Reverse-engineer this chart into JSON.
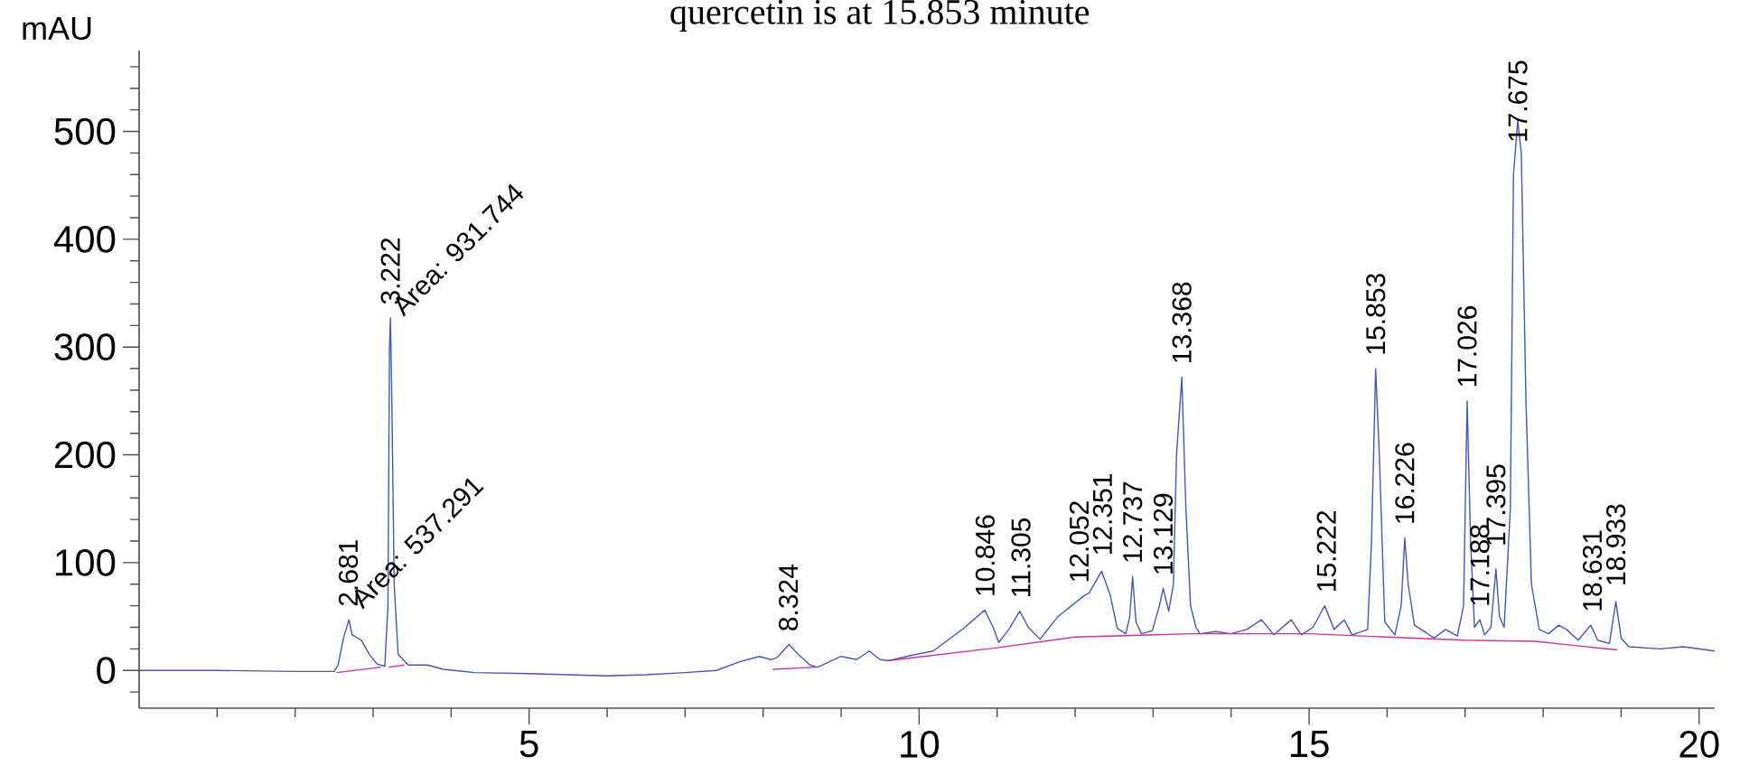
{
  "chart_data": {
    "type": "line",
    "title": "quercetin is at 15.853 minute",
    "ylabel": "mAU",
    "xlim": [
      0,
      20.2
    ],
    "ylim": [
      -35,
      575
    ],
    "xticks": [
      {
        "value": 1,
        "label": null
      },
      {
        "value": 2,
        "label": null
      },
      {
        "value": 3,
        "label": null
      },
      {
        "value": 4,
        "label": null
      },
      5,
      {
        "value": 6,
        "label": null
      },
      {
        "value": 7,
        "label": null
      },
      {
        "value": 8,
        "label": null
      },
      {
        "value": 9,
        "label": null
      },
      10,
      {
        "value": 11,
        "label": null
      },
      {
        "value": 12,
        "label": null
      },
      {
        "value": 13,
        "label": null
      },
      {
        "value": 14,
        "label": null
      },
      15,
      {
        "value": 16,
        "label": null
      },
      {
        "value": 17,
        "label": null
      },
      {
        "value": 18,
        "label": null
      },
      {
        "value": 19,
        "label": null
      },
      20
    ],
    "yticks": [
      {
        "value": -20,
        "label": null
      },
      0,
      {
        "value": 20,
        "label": null
      },
      {
        "value": 40,
        "label": null
      },
      {
        "value": 60,
        "label": null
      },
      {
        "value": 80,
        "label": null
      },
      100,
      {
        "value": 120,
        "label": null
      },
      {
        "value": 140,
        "label": null
      },
      {
        "value": 160,
        "label": null
      },
      {
        "value": 180,
        "label": null
      },
      200,
      {
        "value": 220,
        "label": null
      },
      {
        "value": 240,
        "label": null
      },
      {
        "value": 260,
        "label": null
      },
      {
        "value": 280,
        "label": null
      },
      300,
      {
        "value": 320,
        "label": null
      },
      {
        "value": 340,
        "label": null
      },
      {
        "value": 360,
        "label": null
      },
      {
        "value": 380,
        "label": null
      },
      400,
      {
        "value": 420,
        "label": null
      },
      {
        "value": 440,
        "label": null
      },
      {
        "value": 460,
        "label": null
      },
      {
        "value": 480,
        "label": null
      },
      500,
      {
        "value": 520,
        "label": null
      },
      {
        "value": 540,
        "label": null
      },
      {
        "value": 560,
        "label": null
      }
    ],
    "series": [
      {
        "color": "#4a55b8",
        "x": [
          0,
          1,
          2,
          2.5,
          2.55,
          2.62,
          2.69,
          2.73,
          2.78,
          2.85,
          2.95,
          3.05,
          3.15,
          3.19,
          3.21,
          3.222,
          3.24,
          3.27,
          3.32,
          3.45,
          3.7,
          3.9,
          4.3,
          5,
          6,
          6.5,
          7,
          7.4,
          7.7,
          7.95,
          8.1,
          8.18,
          8.33,
          8.45,
          8.6,
          8.7,
          8.85,
          9,
          9.2,
          9.36,
          9.5,
          9.61,
          9.9,
          10.18,
          10.57,
          10.84,
          10.95,
          11.02,
          11.15,
          11.29,
          11.4,
          11.55,
          11.78,
          12.11,
          12.18,
          12.34,
          12.45,
          12.54,
          12.65,
          12.7,
          12.737,
          12.78,
          12.85,
          12.99,
          13.08,
          13.129,
          13.2,
          13.26,
          13.3,
          13.368,
          13.42,
          13.48,
          13.55,
          13.6,
          13.8,
          14.0,
          14.2,
          14.39,
          14.55,
          14.77,
          14.9,
          15.05,
          15.2,
          15.32,
          15.45,
          15.55,
          15.75,
          15.8,
          15.853,
          15.9,
          15.97,
          16.1,
          16.18,
          16.226,
          16.27,
          16.35,
          16.5,
          16.6,
          16.75,
          16.9,
          16.98,
          17.026,
          17.07,
          17.12,
          17.188,
          17.25,
          17.33,
          17.395,
          17.44,
          17.5,
          17.58,
          17.62,
          17.675,
          17.72,
          17.78,
          17.85,
          17.95,
          18.07,
          18.2,
          18.3,
          18.45,
          18.61,
          18.7,
          18.85,
          18.933,
          19.0,
          19.1,
          19.5,
          19.8,
          20.2
        ],
        "values": [
          0,
          0,
          -1,
          -1,
          5,
          30,
          47,
          33,
          31,
          28,
          15,
          6,
          4,
          60,
          300,
          327,
          250,
          80,
          15,
          5,
          5,
          1,
          -2,
          -3,
          -5,
          -4,
          -2,
          0,
          8,
          13,
          10,
          12,
          24,
          15,
          5,
          3,
          8,
          13,
          10,
          18,
          10,
          9,
          14,
          18,
          39,
          56,
          40,
          26,
          38,
          55,
          40,
          29,
          50,
          69,
          72,
          92,
          70,
          39,
          34,
          50,
          87,
          45,
          34,
          37,
          60,
          76,
          55,
          80,
          200,
          272,
          150,
          60,
          40,
          34,
          36,
          34,
          38,
          47,
          33,
          47,
          33,
          40,
          60,
          38,
          47,
          33,
          38,
          120,
          280,
          200,
          45,
          33,
          60,
          123,
          80,
          42,
          35,
          30,
          38,
          32,
          60,
          250,
          120,
          40,
          47,
          33,
          40,
          94,
          50,
          40,
          150,
          460,
          510,
          480,
          250,
          80,
          38,
          34,
          42,
          38,
          28,
          42,
          28,
          25,
          64,
          30,
          22,
          20,
          22,
          18
        ]
      },
      {
        "color": "#cc3399",
        "x": [
          2.53,
          3.1,
          3.15,
          3.2,
          3.4,
          3.45,
          8.12,
          8.68,
          8.75,
          9.6,
          11.0,
          12.0,
          13.5,
          15.0,
          16.0,
          17.0,
          17.9,
          18.3,
          18.95
        ],
        "values": [
          -2,
          3,
          null,
          3,
          5,
          null,
          1,
          3,
          null,
          9,
          21,
          31,
          34,
          34,
          31,
          28,
          27,
          24,
          19
        ]
      }
    ],
    "annotations": [
      {
        "text": "2.681",
        "x": 2.681,
        "y": 47
      },
      {
        "text": "3.222",
        "x": 3.222,
        "y": 327
      },
      {
        "text": "8.324",
        "x": 8.324,
        "y": 24
      },
      {
        "text": "10.846",
        "x": 10.846,
        "y": 56
      },
      {
        "text": "11.305",
        "x": 11.305,
        "y": 55
      },
      {
        "text": "12.052",
        "x": 12.052,
        "y": 69
      },
      {
        "text": "12.351",
        "x": 12.351,
        "y": 92
      },
      {
        "text": "12.737",
        "x": 12.737,
        "y": 87
      },
      {
        "text": "13.129",
        "x": 13.129,
        "y": 76
      },
      {
        "text": "13.368",
        "x": 13.368,
        "y": 272
      },
      {
        "text": "15.222",
        "x": 15.222,
        "y": 60
      },
      {
        "text": "15.853",
        "x": 15.853,
        "y": 280
      },
      {
        "text": "16.226",
        "x": 16.226,
        "y": 123
      },
      {
        "text": "17.026",
        "x": 17.026,
        "y": 250
      },
      {
        "text": "17.188",
        "x": 17.188,
        "y": 47
      },
      {
        "text": "17.395",
        "x": 17.395,
        "y": 94
      },
      {
        "text": "17.675",
        "x": 17.675,
        "y": 510
      },
      {
        "text": "18.631",
        "x": 18.631,
        "y": 42
      },
      {
        "text": "18.933",
        "x": 18.933,
        "y": 64
      },
      "Area: 931.744",
      "Area: 537.291"
    ]
  }
}
